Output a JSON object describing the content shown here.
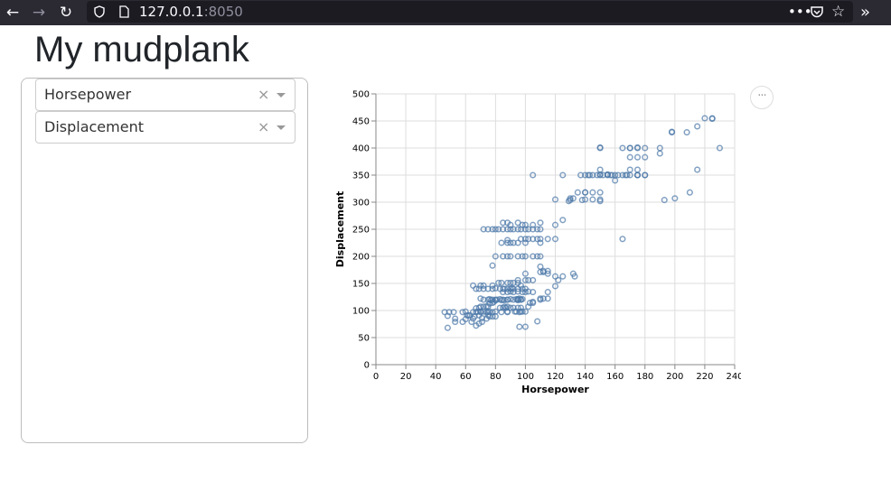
{
  "browser": {
    "url_host": "127.0.0.1",
    "url_port": ":8050",
    "icons": [
      "back-arrow-icon",
      "forward-arrow-icon",
      "reload-icon",
      "shield-icon",
      "page-icon",
      "more-dots-icon",
      "pocket-icon",
      "star-icon",
      "overflow-chevron-icon"
    ]
  },
  "page": {
    "title": "My mudplank"
  },
  "controls": {
    "x_dropdown": {
      "value": "Horsepower",
      "clear": "×"
    },
    "y_dropdown": {
      "value": "Displacement",
      "clear": "×"
    }
  },
  "chart_actions": {
    "label": "···"
  },
  "colors": {
    "point_stroke": "#4c78a8",
    "grid": "#dddddd",
    "axis": "#888888"
  },
  "chart_data": {
    "type": "scatter",
    "title": "",
    "xlabel": "Horsepower",
    "ylabel": "Displacement",
    "xlim": [
      0,
      240
    ],
    "ylim": [
      0,
      500
    ],
    "x_ticks": [
      0,
      20,
      40,
      60,
      80,
      100,
      120,
      140,
      160,
      180,
      200,
      220,
      240
    ],
    "y_ticks": [
      0,
      50,
      100,
      150,
      200,
      250,
      300,
      350,
      400,
      450,
      500
    ],
    "grid": true,
    "marker": "open-circle",
    "points": [
      [
        46,
        97
      ],
      [
        48,
        90
      ],
      [
        49,
        97
      ],
      [
        52,
        97
      ],
      [
        48,
        68
      ],
      [
        53,
        79
      ],
      [
        53,
        85
      ],
      [
        58,
        97
      ],
      [
        60,
        98
      ],
      [
        61,
        91
      ],
      [
        63,
        91
      ],
      [
        65,
        85
      ],
      [
        65,
        97
      ],
      [
        67,
        97
      ],
      [
        67,
        72
      ],
      [
        68,
        98
      ],
      [
        69,
        91
      ],
      [
        70,
        97
      ],
      [
        70,
        98
      ],
      [
        71,
        79
      ],
      [
        72,
        98
      ],
      [
        74,
        97
      ],
      [
        75,
        97
      ],
      [
        76,
        98
      ],
      [
        78,
        97
      ],
      [
        80,
        98
      ],
      [
        58,
        79
      ],
      [
        60,
        84
      ],
      [
        62,
        91
      ],
      [
        64,
        79
      ],
      [
        66,
        89
      ],
      [
        69,
        76
      ],
      [
        71,
        86
      ],
      [
        74,
        85
      ],
      [
        75,
        91
      ],
      [
        76,
        89
      ],
      [
        78,
        89
      ],
      [
        80,
        89
      ],
      [
        83,
        105
      ],
      [
        84,
        97
      ],
      [
        85,
        105
      ],
      [
        86,
        107
      ],
      [
        87,
        105
      ],
      [
        88,
        97
      ],
      [
        88,
        98
      ],
      [
        88,
        107
      ],
      [
        90,
        105
      ],
      [
        92,
        105
      ],
      [
        93,
        98
      ],
      [
        94,
        98
      ],
      [
        95,
        105
      ],
      [
        96,
        97
      ],
      [
        97,
        98
      ],
      [
        97,
        105
      ],
      [
        98,
        98
      ],
      [
        100,
        98
      ],
      [
        102,
        107
      ],
      [
        103,
        114
      ],
      [
        105,
        114
      ],
      [
        67,
        104
      ],
      [
        69,
        105
      ],
      [
        70,
        107
      ],
      [
        72,
        107
      ],
      [
        74,
        108
      ],
      [
        75,
        107
      ],
      [
        76,
        113
      ],
      [
        78,
        114
      ],
      [
        79,
        116
      ],
      [
        80,
        119
      ],
      [
        81,
        120
      ],
      [
        83,
        121
      ],
      [
        84,
        119
      ],
      [
        85,
        120
      ],
      [
        86,
        119
      ],
      [
        88,
        120
      ],
      [
        90,
        121
      ],
      [
        92,
        120
      ],
      [
        94,
        121
      ],
      [
        95,
        120
      ],
      [
        96,
        122
      ],
      [
        67,
        140
      ],
      [
        69,
        140
      ],
      [
        72,
        140
      ],
      [
        75,
        140
      ],
      [
        78,
        140
      ],
      [
        80,
        141
      ],
      [
        83,
        140
      ],
      [
        85,
        140
      ],
      [
        86,
        140
      ],
      [
        88,
        140
      ],
      [
        90,
        140
      ],
      [
        91,
        141
      ],
      [
        92,
        140
      ],
      [
        95,
        140
      ],
      [
        97,
        146
      ],
      [
        98,
        140
      ],
      [
        100,
        140
      ],
      [
        65,
        146
      ],
      [
        70,
        146
      ],
      [
        72,
        146
      ],
      [
        78,
        146
      ],
      [
        82,
        151
      ],
      [
        84,
        151
      ],
      [
        88,
        151
      ],
      [
        90,
        151
      ],
      [
        92,
        151
      ],
      [
        95,
        151
      ],
      [
        70,
        122
      ],
      [
        72,
        120
      ],
      [
        75,
        120
      ],
      [
        76,
        121
      ],
      [
        77,
        119
      ],
      [
        78,
        120
      ],
      [
        80,
        120
      ],
      [
        88,
        120
      ],
      [
        95,
        119
      ],
      [
        95,
        121
      ],
      [
        97,
        120
      ],
      [
        98,
        121
      ],
      [
        85,
        134
      ],
      [
        88,
        134
      ],
      [
        90,
        135
      ],
      [
        92,
        134
      ],
      [
        95,
        135
      ],
      [
        98,
        134
      ],
      [
        100,
        134
      ],
      [
        102,
        135
      ],
      [
        105,
        134
      ],
      [
        95,
        156
      ],
      [
        100,
        156
      ],
      [
        102,
        156
      ],
      [
        105,
        156
      ],
      [
        110,
        171
      ],
      [
        112,
        171
      ],
      [
        115,
        173
      ],
      [
        120,
        163
      ],
      [
        122,
        156
      ],
      [
        125,
        163
      ],
      [
        132,
        168
      ],
      [
        133,
        163
      ],
      [
        110,
        181
      ],
      [
        115,
        168
      ],
      [
        112,
        173
      ],
      [
        100,
        168
      ],
      [
        110,
        122
      ],
      [
        112,
        122
      ],
      [
        115,
        122
      ],
      [
        115,
        134
      ],
      [
        120,
        145
      ],
      [
        96,
        70
      ],
      [
        100,
        70
      ],
      [
        97,
        120
      ],
      [
        108,
        80
      ],
      [
        105,
        116
      ],
      [
        110,
        120
      ],
      [
        78,
        183
      ],
      [
        80,
        200
      ],
      [
        85,
        200
      ],
      [
        88,
        200
      ],
      [
        90,
        200
      ],
      [
        95,
        200
      ],
      [
        98,
        200
      ],
      [
        100,
        200
      ],
      [
        105,
        200
      ],
      [
        108,
        200
      ],
      [
        110,
        200
      ],
      [
        84,
        225
      ],
      [
        88,
        225
      ],
      [
        90,
        225
      ],
      [
        92,
        225
      ],
      [
        95,
        225
      ],
      [
        97,
        232
      ],
      [
        100,
        232
      ],
      [
        102,
        232
      ],
      [
        105,
        232
      ],
      [
        108,
        232
      ],
      [
        110,
        232
      ],
      [
        115,
        232
      ],
      [
        120,
        232
      ],
      [
        72,
        250
      ],
      [
        75,
        250
      ],
      [
        78,
        250
      ],
      [
        80,
        250
      ],
      [
        82,
        250
      ],
      [
        85,
        250
      ],
      [
        88,
        250
      ],
      [
        90,
        250
      ],
      [
        92,
        250
      ],
      [
        95,
        250
      ],
      [
        97,
        250
      ],
      [
        100,
        250
      ],
      [
        102,
        250
      ],
      [
        105,
        250
      ],
      [
        108,
        250
      ],
      [
        110,
        250
      ],
      [
        85,
        262
      ],
      [
        88,
        262
      ],
      [
        90,
        258
      ],
      [
        95,
        262
      ],
      [
        98,
        258
      ],
      [
        100,
        258
      ],
      [
        105,
        258
      ],
      [
        110,
        262
      ],
      [
        120,
        258
      ],
      [
        125,
        267
      ],
      [
        88,
        230
      ],
      [
        100,
        225
      ],
      [
        110,
        225
      ],
      [
        165,
        232
      ],
      [
        120,
        305
      ],
      [
        129,
        302
      ],
      [
        130,
        304
      ],
      [
        130,
        307
      ],
      [
        132,
        307
      ],
      [
        135,
        318
      ],
      [
        138,
        304
      ],
      [
        140,
        305
      ],
      [
        140,
        318
      ],
      [
        145,
        318
      ],
      [
        145,
        305
      ],
      [
        150,
        318
      ],
      [
        150,
        305
      ],
      [
        150,
        302
      ],
      [
        140,
        318
      ],
      [
        105,
        350
      ],
      [
        125,
        350
      ],
      [
        137,
        350
      ],
      [
        140,
        350
      ],
      [
        142,
        350
      ],
      [
        145,
        350
      ],
      [
        148,
        350
      ],
      [
        150,
        350
      ],
      [
        152,
        350
      ],
      [
        155,
        350
      ],
      [
        157,
        350
      ],
      [
        160,
        350
      ],
      [
        162,
        350
      ],
      [
        165,
        350
      ],
      [
        168,
        350
      ],
      [
        170,
        350
      ],
      [
        175,
        350
      ],
      [
        180,
        350
      ],
      [
        150,
        360
      ],
      [
        155,
        351
      ],
      [
        160,
        340
      ],
      [
        170,
        360
      ],
      [
        175,
        360
      ],
      [
        175,
        350
      ],
      [
        150,
        400
      ],
      [
        150,
        401
      ],
      [
        165,
        400
      ],
      [
        170,
        400
      ],
      [
        175,
        400
      ],
      [
        175,
        401
      ],
      [
        180,
        400
      ],
      [
        190,
        400
      ],
      [
        190,
        390
      ],
      [
        170,
        383
      ],
      [
        175,
        383
      ],
      [
        180,
        383
      ],
      [
        198,
        429
      ],
      [
        198,
        430
      ],
      [
        208,
        429
      ],
      [
        215,
        440
      ],
      [
        220,
        455
      ],
      [
        225,
        455
      ],
      [
        225,
        454
      ],
      [
        230,
        400
      ],
      [
        215,
        360
      ],
      [
        210,
        318
      ],
      [
        200,
        307
      ],
      [
        193,
        304
      ],
      [
        175,
        350
      ],
      [
        167,
        350
      ],
      [
        158,
        350
      ],
      [
        180,
        350
      ],
      [
        155,
        351
      ],
      [
        143,
        350
      ],
      [
        150,
        351
      ],
      [
        170,
        400
      ]
    ]
  }
}
